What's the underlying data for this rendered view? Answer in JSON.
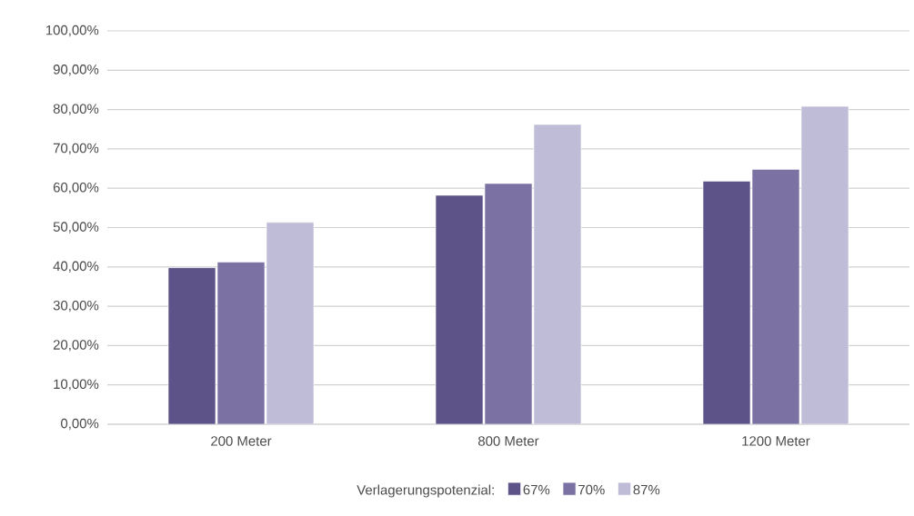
{
  "chart_data": {
    "type": "bar",
    "categories": [
      "200 Meter",
      "800 Meter",
      "1200 Meter"
    ],
    "legend_title": "Verlagerungspotenzial:",
    "series": [
      {
        "name": "67%",
        "color": "#5e5389",
        "values": [
          39.8,
          58.2,
          61.8
        ]
      },
      {
        "name": "70%",
        "color": "#7b71a3",
        "values": [
          41.2,
          61.2,
          64.8
        ]
      },
      {
        "name": "87%",
        "color": "#bebcd6",
        "values": [
          51.3,
          76.2,
          80.8
        ]
      }
    ],
    "ylim": [
      0,
      100
    ],
    "yticks": [
      {
        "value": 0,
        "label": "0,00%"
      },
      {
        "value": 10,
        "label": "10,00%"
      },
      {
        "value": 20,
        "label": "20,00%"
      },
      {
        "value": 30,
        "label": "30,00%"
      },
      {
        "value": 40,
        "label": "40,00%"
      },
      {
        "value": 50,
        "label": "50,00%"
      },
      {
        "value": 60,
        "label": "60,00%"
      },
      {
        "value": 70,
        "label": "70,00%"
      },
      {
        "value": 80,
        "label": "80,00%"
      },
      {
        "value": 90,
        "label": "90,00%"
      },
      {
        "value": 100,
        "label": "100,00%"
      }
    ],
    "grid": "y",
    "legend": "bottom"
  }
}
